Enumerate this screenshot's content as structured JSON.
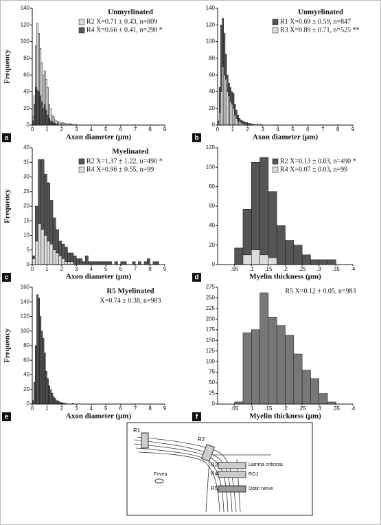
{
  "chart_data": [
    {
      "type": "histogram",
      "panel_label": "a",
      "title": "Unmyelinated",
      "xlabel": "Axon diameter (μm)",
      "ylabel": "Frequency",
      "bins": [
        0,
        0.1,
        0.2,
        0.3,
        0.4,
        0.5,
        0.6,
        0.7,
        0.8,
        0.9,
        1,
        1.1,
        1.2,
        1.3,
        1.4,
        1.5,
        1.6,
        1.7,
        1.8,
        1.9,
        2,
        2.1,
        2.2,
        2.3,
        2.4,
        2.5,
        2.6,
        2.7,
        2.8,
        2.9,
        3
      ],
      "series": [
        {
          "name": "R2 X=0.71 ± 0.43, n=809",
          "color": "#dcdcdc",
          "values": [
            10,
            35,
            95,
            122,
            110,
            92,
            75,
            60,
            65,
            55,
            45,
            25,
            20,
            12,
            10,
            6,
            5,
            3,
            4,
            2,
            3,
            2,
            2,
            1,
            1,
            2,
            1,
            1,
            0,
            1
          ]
        },
        {
          "name": "R4 X=0.66 ± 0.41, n=298 *",
          "color": "#555555",
          "values": [
            5,
            25,
            45,
            42,
            40,
            35,
            28,
            20,
            25,
            18,
            12,
            8,
            5,
            4,
            3,
            2,
            1,
            1,
            0,
            0,
            0,
            0,
            0,
            0,
            0,
            0,
            0,
            0,
            0,
            0
          ]
        }
      ],
      "xlim": [
        0,
        9
      ],
      "xticks": [
        0,
        1,
        2,
        3,
        4,
        5,
        6,
        7,
        8,
        9
      ],
      "ylim": [
        0,
        140
      ],
      "yticks": [
        0,
        20,
        40,
        60,
        80,
        100,
        120,
        140
      ]
    },
    {
      "type": "histogram",
      "panel_label": "b",
      "title": "Unmyelinated",
      "xlabel": "Axon diameter (μm)",
      "bins": [
        0,
        0.1,
        0.2,
        0.3,
        0.4,
        0.5,
        0.6,
        0.7,
        0.8,
        0.9,
        1,
        1.1,
        1.2,
        1.3,
        1.4,
        1.5,
        1.6,
        1.7,
        1.8,
        1.9,
        2,
        2.1,
        2.2,
        2.3,
        2.4,
        2.5,
        2.6,
        2.7,
        2.8,
        2.9,
        3
      ],
      "series": [
        {
          "name": "R1 X=0.69 ± 0.59, n=847",
          "color": "#555555",
          "values": [
            5,
            45,
            120,
            128,
            110,
            85,
            60,
            50,
            45,
            40,
            38,
            25,
            18,
            12,
            8,
            6,
            5,
            4,
            3,
            3,
            2,
            2,
            1,
            1,
            1,
            0,
            1,
            0,
            1,
            0
          ]
        },
        {
          "name": "R3 X=0.89 ± 0.71, n=525 **",
          "color": "#dcdcdc",
          "values": [
            2,
            15,
            40,
            70,
            60,
            55,
            40,
            35,
            28,
            25,
            20,
            12,
            8,
            5,
            4,
            3,
            2,
            2,
            1,
            1,
            1,
            0,
            0,
            0,
            0,
            0,
            0,
            0,
            0,
            0
          ]
        }
      ],
      "xlim": [
        0,
        9
      ],
      "xticks": [
        0,
        1,
        2,
        3,
        4,
        5,
        6,
        7,
        8,
        9
      ],
      "ylim": [
        0,
        140
      ],
      "yticks": [
        0,
        20,
        40,
        60,
        80,
        100,
        120,
        140
      ]
    },
    {
      "type": "histogram",
      "panel_label": "c",
      "title": "Myelinated",
      "xlabel": "Axon diameter (μm)",
      "ylabel": "Frequency",
      "bins": [
        0,
        0.2,
        0.4,
        0.6,
        0.8,
        1,
        1.2,
        1.4,
        1.6,
        1.8,
        2,
        2.2,
        2.4,
        2.6,
        2.8,
        3,
        3.2,
        3.4,
        3.6,
        3.8,
        4,
        4.2,
        4.4,
        4.6,
        4.8,
        5,
        5.2,
        5.4,
        5.6,
        5.8,
        6,
        6.2,
        6.4,
        6.6,
        6.8,
        7,
        7.2,
        7.4,
        7.6,
        7.8,
        8,
        8.2,
        8.4,
        8.6,
        8.8,
        9
      ],
      "series": [
        {
          "name": "R2 X=1.37 ± 1.22, n=490 *",
          "color": "#555555",
          "values": [
            3,
            20,
            36,
            36,
            31,
            28,
            22,
            16,
            12,
            8,
            7,
            6,
            4,
            4,
            3,
            2,
            2,
            1,
            3,
            1,
            1,
            1,
            1,
            1,
            1,
            1,
            1,
            0,
            1,
            0,
            1,
            1,
            0,
            0,
            1,
            0,
            1,
            0,
            1,
            2,
            0,
            1,
            1,
            0,
            0
          ]
        },
        {
          "name": "R4 X=0.96 ± 0.55, n=99",
          "color": "#dcdcdc",
          "values": [
            2,
            8,
            14,
            12,
            10,
            8,
            7,
            5,
            4,
            3,
            2,
            1,
            1,
            1,
            0,
            0,
            0,
            0,
            0,
            0,
            0,
            0,
            0,
            0,
            0,
            0,
            0,
            0,
            0,
            0,
            0,
            0,
            0,
            0,
            0,
            0,
            0,
            0,
            0,
            0,
            0,
            0,
            0,
            0,
            0
          ]
        }
      ],
      "xlim": [
        0,
        9
      ],
      "xticks": [
        0,
        1,
        2,
        3,
        4,
        5,
        6,
        7,
        8,
        9
      ],
      "ylim": [
        0,
        40
      ],
      "yticks": [
        0,
        5,
        10,
        15,
        20,
        25,
        30,
        35,
        40
      ]
    },
    {
      "type": "histogram",
      "panel_label": "d",
      "xlabel": "Myelin thickness (μm)",
      "bins": [
        0.05,
        0.075,
        0.1,
        0.125,
        0.15,
        0.175,
        0.2,
        0.225,
        0.25,
        0.275,
        0.3,
        0.325,
        0.35
      ],
      "series": [
        {
          "name": "R2 X=0.13 ± 0.03, n=490 *",
          "color": "#555555",
          "values": [
            17,
            57,
            105,
            110,
            75,
            40,
            25,
            20,
            10,
            5,
            5,
            5
          ]
        },
        {
          "name": "R4 X=0.07 ± 0.03, n=99",
          "color": "#dcdcdc",
          "values": [
            0,
            10,
            15,
            10,
            7,
            0,
            0,
            0,
            0,
            0,
            0,
            0
          ]
        }
      ],
      "xlim": [
        0,
        0.4
      ],
      "xticks": [
        {
          "value": 0.05,
          "label": ".05"
        },
        {
          "value": 0.1,
          "label": ".1"
        },
        {
          "value": 0.15,
          "label": ".15"
        },
        {
          "value": 0.2,
          "label": ".2"
        },
        {
          "value": 0.25,
          "label": ".25"
        },
        {
          "value": 0.3,
          "label": ".3"
        },
        {
          "value": 0.35,
          "label": ".35"
        },
        {
          "value": 0.4,
          "label": ".4"
        }
      ],
      "ylim": [
        0,
        120
      ],
      "yticks": [
        0,
        20,
        40,
        60,
        80,
        100,
        120
      ]
    },
    {
      "type": "histogram",
      "panel_label": "e",
      "title": "R5 Myelinated",
      "annotation": "X=0.74 ± 0.38, n=983",
      "xlabel": "Axon diameter (μm)",
      "ylabel": "Frequency",
      "bins": [
        0,
        0.1,
        0.2,
        0.3,
        0.4,
        0.5,
        0.6,
        0.7,
        0.8,
        0.9,
        1,
        1.1,
        1.2,
        1.3,
        1.4,
        1.5,
        1.6,
        1.7,
        1.8,
        1.9,
        2,
        2.1,
        2.2,
        2.3,
        2.4,
        2.5,
        2.6,
        2.7,
        2.8,
        2.9,
        3
      ],
      "series": [
        {
          "color": "#555555",
          "values": [
            5,
            30,
            80,
            150,
            145,
            120,
            100,
            90,
            70,
            45,
            35,
            25,
            20,
            15,
            10,
            8,
            5,
            4,
            3,
            2,
            2,
            1,
            1,
            0,
            0,
            0,
            0,
            1,
            0,
            0
          ]
        }
      ],
      "xlim": [
        0,
        9
      ],
      "xticks": [
        0,
        1,
        2,
        3,
        4,
        5,
        6,
        7,
        8,
        9
      ],
      "ylim": [
        0,
        160
      ],
      "yticks": [
        0,
        20,
        40,
        60,
        80,
        100,
        120,
        140,
        160
      ]
    },
    {
      "type": "histogram",
      "panel_label": "f",
      "annotation": "R5 X=0.12 ± 0.05, n=983",
      "xlabel": "Myelin thickness (μm)",
      "bins": [
        0.05,
        0.075,
        0.1,
        0.125,
        0.15,
        0.175,
        0.2,
        0.225,
        0.25,
        0.275,
        0.3,
        0.325,
        0.35
      ],
      "series": [
        {
          "color": "#777777",
          "values": [
            5,
            168,
            175,
            262,
            205,
            185,
            162,
            118,
            80,
            60,
            25,
            5
          ]
        }
      ],
      "xlim": [
        0,
        0.4
      ],
      "xticks": [
        {
          "value": 0.05,
          "label": ".05"
        },
        {
          "value": 0.1,
          "label": ".1"
        },
        {
          "value": 0.15,
          "label": ".15"
        },
        {
          "value": 0.2,
          "label": ".2"
        },
        {
          "value": 0.25,
          "label": ".25"
        },
        {
          "value": 0.3,
          "label": ".3"
        },
        {
          "value": 0.35,
          "label": ".35"
        },
        {
          "value": 0.4,
          "label": ".4"
        }
      ],
      "ylim": [
        0,
        275
      ],
      "yticks": [
        0,
        25,
        50,
        75,
        100,
        125,
        150,
        175,
        200,
        225,
        250,
        275
      ]
    }
  ],
  "diagram": {
    "labels": [
      "R1",
      "R2",
      "R3",
      "R4",
      "R5",
      "Lamina cribrosa",
      "ROJ",
      "Optic nerve",
      "Fovea"
    ]
  }
}
